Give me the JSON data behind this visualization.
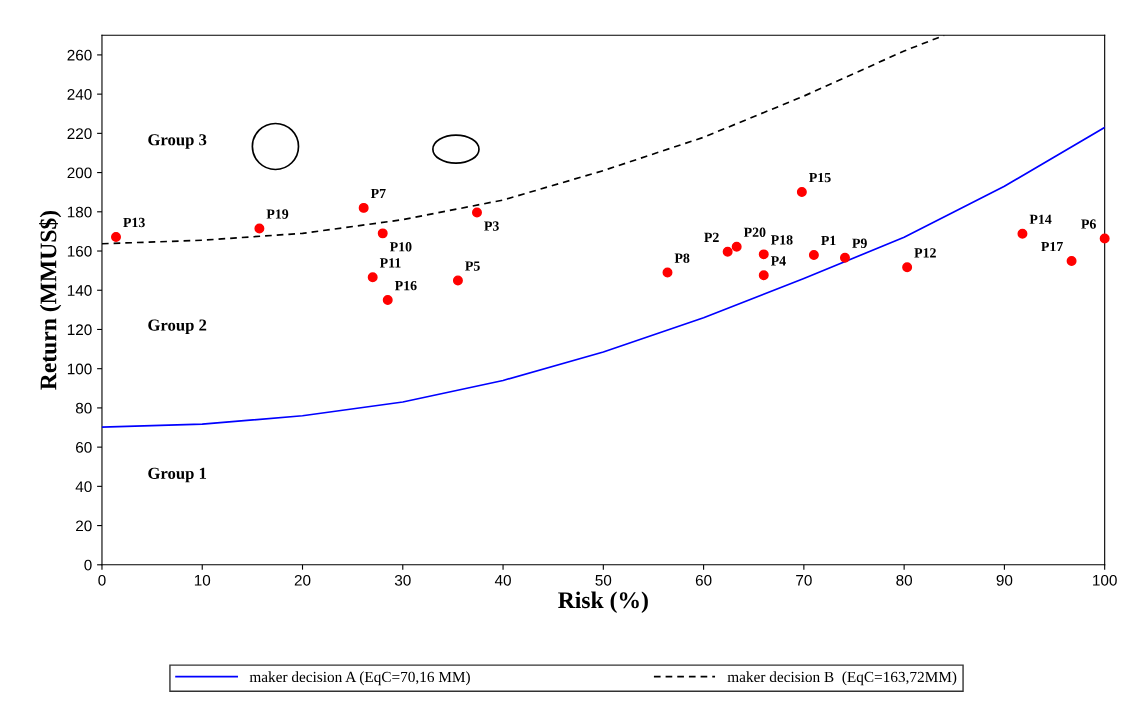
{
  "chart_data": {
    "type": "scatter",
    "xlabel": "Risk (%)",
    "ylabel": "Return (MMUS$)",
    "xlim": [
      0,
      100
    ],
    "xticks": [
      0,
      10,
      20,
      30,
      40,
      50,
      60,
      70,
      80,
      90,
      100
    ],
    "ylim": [
      0,
      270
    ],
    "yticks": [
      0,
      20,
      40,
      60,
      80,
      100,
      120,
      140,
      160,
      180,
      200,
      220,
      240,
      260
    ],
    "grid": false,
    "legend": "bottom",
    "marker": "circle",
    "series": [
      {
        "color": "#ff0000",
        "x": [
          1.4,
          15.7,
          26.1,
          28.0,
          37.4,
          27.0,
          28.5,
          35.5,
          69.8,
          63.3,
          62.4,
          66.0,
          71.0,
          74.1,
          56.4,
          66.0,
          80.3,
          91.8,
          100,
          96.7
        ],
        "values": [
          167.2,
          171.5,
          182,
          169,
          179.6,
          146.6,
          135,
          145,
          190.1,
          162.2,
          159.6,
          158.3,
          158.0,
          156.6,
          149,
          147.6,
          151.7,
          168.8,
          166.4,
          154.9
        ]
      },
      {
        "type": "line",
        "name": "maker decision A (EqC=70,16 MM)",
        "color": "#0000ff",
        "line_style": "solid",
        "marker": "none",
        "x": [
          0,
          10,
          20,
          30,
          40,
          50,
          60,
          70,
          80,
          90,
          100
        ],
        "values": [
          70.2,
          71.7,
          76,
          83,
          94,
          108.5,
          126,
          146,
          167,
          193,
          223
        ]
      },
      {
        "type": "line",
        "name": "maker decision B  (EqC=163,72MM)",
        "color": "#000000",
        "line_style": "dashed",
        "marker": "none",
        "x": [
          0,
          10,
          20,
          30,
          40,
          50,
          60,
          70,
          80,
          84
        ],
        "values": [
          163.7,
          165.5,
          169,
          176,
          186,
          201,
          218,
          239,
          262,
          270
        ]
      }
    ],
    "annotations": [
      {
        "text": "P13",
        "x": 1.4,
        "y": 167.2
      },
      {
        "text": "P19",
        "x": 15.7,
        "y": 171.5
      },
      {
        "text": "P7",
        "x": 26.1,
        "y": 182
      },
      {
        "text": "P10",
        "x": 28.0,
        "y": 169
      },
      {
        "text": "P3",
        "x": 37.4,
        "y": 179.6
      },
      {
        "text": "P11",
        "x": 27.0,
        "y": 146.6
      },
      {
        "text": "P16",
        "x": 28.5,
        "y": 135
      },
      {
        "text": "P5",
        "x": 35.5,
        "y": 145
      },
      {
        "text": "P15",
        "x": 69.8,
        "y": 190.1
      },
      {
        "text": "P20",
        "x": 63.3,
        "y": 162.2
      },
      {
        "text": "P2",
        "x": 62.4,
        "y": 159.6
      },
      {
        "text": "P18",
        "x": 66.0,
        "y": 158.3
      },
      {
        "text": "P1",
        "x": 71.0,
        "y": 158.0
      },
      {
        "text": "P9",
        "x": 74.1,
        "y": 156.6
      },
      {
        "text": "P8",
        "x": 56.4,
        "y": 149
      },
      {
        "text": "P4",
        "x": 66.0,
        "y": 147.6
      },
      {
        "text": "P12",
        "x": 80.3,
        "y": 151.7
      },
      {
        "text": "P14",
        "x": 91.8,
        "y": 168.8
      },
      {
        "text": "P6",
        "x": 100,
        "y": 166.4
      },
      {
        "text": "P17",
        "x": 96.7,
        "y": 154.9
      },
      "Group 3",
      "Group 2",
      "Group 1"
    ]
  }
}
